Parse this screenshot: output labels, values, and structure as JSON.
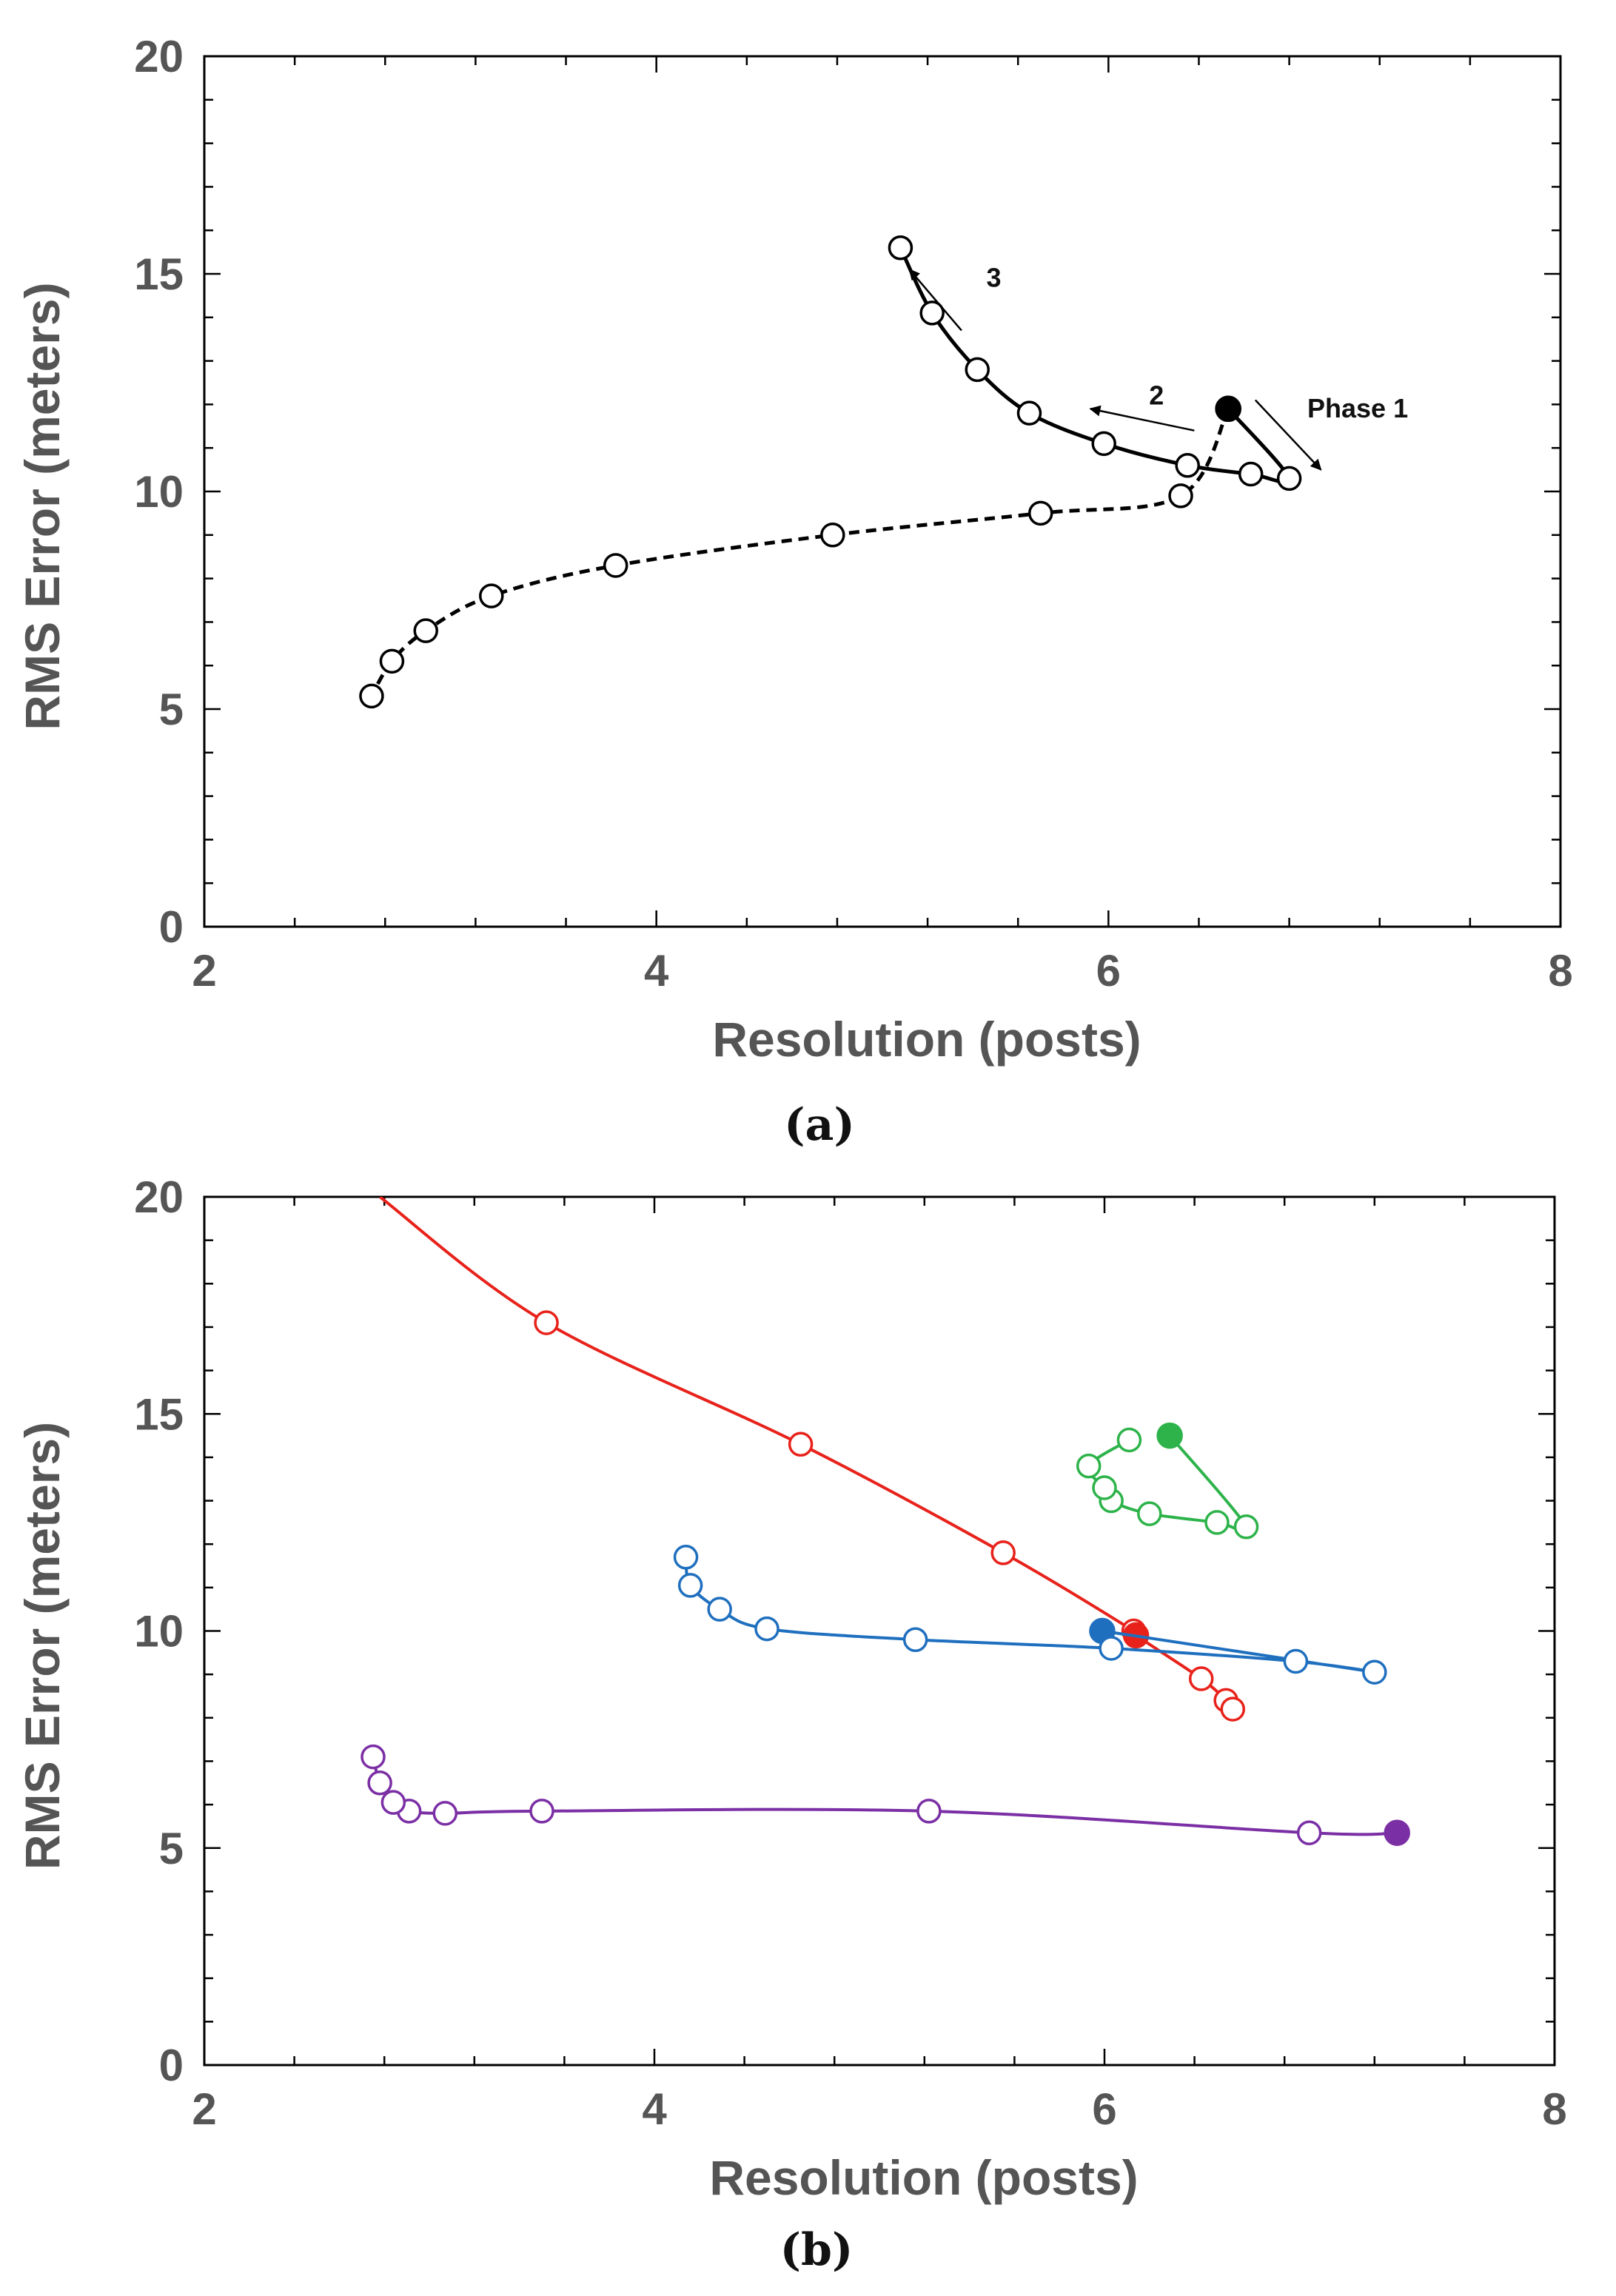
{
  "chart_data": [
    {
      "type": "line",
      "panel_label": "(a)",
      "xlabel": "Resolution (posts)",
      "ylabel": "RMS  Error (meters)",
      "xlim": [
        2,
        8
      ],
      "ylim": [
        0,
        20
      ],
      "xticks": [
        "2",
        "4",
        "6",
        "8"
      ],
      "yticks": [
        "0",
        "5",
        "10",
        "15",
        "20"
      ],
      "grid": false,
      "colors": {
        "main": "#000000"
      },
      "series": [
        {
          "style": "solid",
          "color": "#000000",
          "points": [
            [
              6.53,
              11.9
            ],
            [
              6.8,
              10.3
            ],
            [
              6.63,
              10.4
            ],
            [
              6.35,
              10.6
            ],
            [
              5.98,
              11.1
            ],
            [
              5.65,
              11.8
            ],
            [
              5.42,
              12.8
            ],
            [
              5.22,
              14.1
            ],
            [
              5.08,
              15.6
            ]
          ],
          "filled_index": 0
        },
        {
          "style": "dashed",
          "color": "#000000",
          "points": [
            [
              6.53,
              11.9
            ],
            [
              6.32,
              9.9
            ],
            [
              5.7,
              9.5
            ],
            [
              4.78,
              9.0
            ],
            [
              3.82,
              8.3
            ],
            [
              3.27,
              7.6
            ],
            [
              2.98,
              6.8
            ],
            [
              2.83,
              6.1
            ],
            [
              2.74,
              5.3
            ]
          ],
          "filled_index": 0
        }
      ],
      "annotations": [
        {
          "text": "Phase 1",
          "x": 6.88,
          "y": 11.7
        },
        {
          "text": "2",
          "x": 6.18,
          "y": 12.0
        },
        {
          "text": "3",
          "x": 5.46,
          "y": 14.7
        }
      ]
    },
    {
      "type": "line",
      "panel_label": "(b)",
      "xlabel": "Resolution (posts)",
      "ylabel": "RMS  Error (meters)",
      "xlim": [
        2,
        8
      ],
      "ylim": [
        0,
        20
      ],
      "xticks": [
        "2",
        "4",
        "6",
        "8"
      ],
      "yticks": [
        "0",
        "5",
        "10",
        "15",
        "20"
      ],
      "grid": false,
      "series": [
        {
          "color": "#e8221b",
          "points": [
            [
              2.78,
              20.0
            ],
            [
              3.52,
              17.1
            ],
            [
              4.65,
              14.3
            ],
            [
              5.55,
              11.8
            ],
            [
              6.13,
              10.0
            ],
            [
              6.14,
              9.9
            ],
            [
              6.43,
              8.9
            ],
            [
              6.54,
              8.4
            ],
            [
              6.57,
              8.2
            ]
          ],
          "filled_index": 5,
          "no_marker_index": 0
        },
        {
          "color": "#1f6fbf",
          "points": [
            [
              5.99,
              10.0
            ],
            [
              7.2,
              9.05
            ],
            [
              6.85,
              9.3
            ],
            [
              6.03,
              9.6
            ],
            [
              5.16,
              9.8
            ],
            [
              4.5,
              10.05
            ],
            [
              4.29,
              10.5
            ],
            [
              4.16,
              11.05
            ],
            [
              4.14,
              11.7
            ]
          ],
          "filled_index": 0
        },
        {
          "color": "#2db34a",
          "points": [
            [
              6.29,
              14.5
            ],
            [
              6.63,
              12.4
            ],
            [
              6.5,
              12.5
            ],
            [
              6.2,
              12.7
            ],
            [
              6.03,
              13.0
            ],
            [
              6.0,
              13.3
            ],
            [
              5.93,
              13.8
            ],
            [
              6.11,
              14.4
            ]
          ],
          "filled_index": 0
        },
        {
          "color": "#7b2fa5",
          "points": [
            [
              7.3,
              5.35
            ],
            [
              6.91,
              5.35
            ],
            [
              5.22,
              5.85
            ],
            [
              3.5,
              5.85
            ],
            [
              3.07,
              5.8
            ],
            [
              2.91,
              5.85
            ],
            [
              2.84,
              6.05
            ],
            [
              2.78,
              6.5
            ],
            [
              2.75,
              7.1
            ]
          ],
          "filled_index": 0
        }
      ]
    }
  ]
}
